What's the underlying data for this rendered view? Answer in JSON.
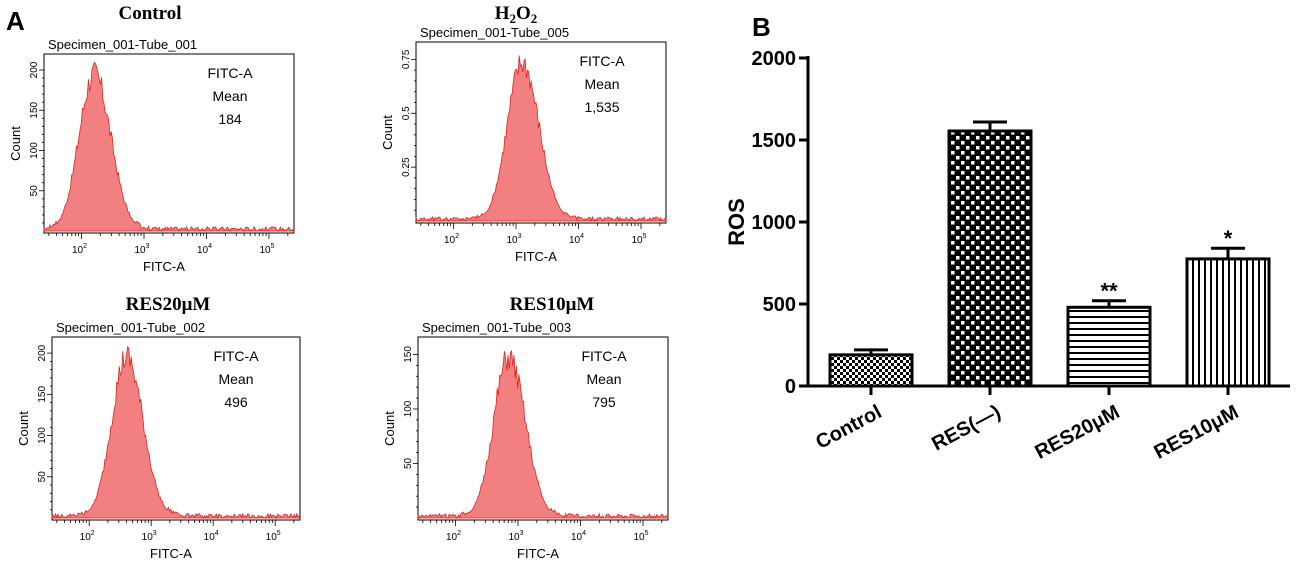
{
  "panels": {
    "a": "A",
    "b": "B"
  },
  "chart_data": [
    {
      "type": "histogram-grid",
      "panel": "A",
      "histograms": [
        {
          "title": "Control",
          "title_sub": "",
          "subtitle": "Specimen_001-Tube_001",
          "info": [
            "FITC-A",
            "Mean",
            "184"
          ],
          "xlabel": "FITC-A",
          "ylabel": "Count",
          "peak_log": 2.2,
          "yticks": [
            "50",
            "100",
            "150",
            "200"
          ]
        },
        {
          "title": "H",
          "title_sub": "2",
          "title_2": "O",
          "title_sub_2": "2",
          "subtitle": "Specimen_001-Tube_005",
          "info": [
            "FITC-A",
            "Mean",
            "1,535"
          ],
          "xlabel": "FITC-A",
          "ylabel": "Count",
          "peak_log": 3.1,
          "yticks": [
            "0.25",
            "0.5",
            "0.75"
          ]
        },
        {
          "title": "RES20μM",
          "title_sub": "",
          "subtitle": "Specimen_001-Tube_002",
          "info": [
            "FITC-A",
            "Mean",
            "496"
          ],
          "xlabel": "FITC-A",
          "ylabel": "Count",
          "peak_log": 2.6,
          "yticks": [
            "50",
            "100",
            "150",
            "200"
          ]
        },
        {
          "title": "RES10μM",
          "title_sub": "",
          "subtitle": "Specimen_001-Tube_003",
          "info": [
            "FITC-A",
            "Mean",
            "795"
          ],
          "xlabel": "FITC-A",
          "ylabel": "Count",
          "peak_log": 2.85,
          "yticks": [
            "50",
            "100",
            "150"
          ]
        }
      ],
      "x_ticks": [
        {
          "base": "10",
          "exp": "2"
        },
        {
          "base": "10",
          "exp": "3"
        },
        {
          "base": "10",
          "exp": "4"
        },
        {
          "base": "10",
          "exp": "5"
        }
      ]
    },
    {
      "type": "bar",
      "panel": "B",
      "categories": [
        "Control",
        "RES(—)",
        "RES20μM",
        "RES10μM"
      ],
      "values": [
        190,
        1555,
        480,
        775
      ],
      "errors": [
        30,
        55,
        40,
        65
      ],
      "annotations": [
        "",
        "",
        "**",
        "*"
      ],
      "patterns": [
        "dense-check",
        "check",
        "hlines",
        "vlines"
      ],
      "ylabel": "ROS",
      "ylim": [
        0,
        2000
      ],
      "yticks": [
        "0",
        "500",
        "1000",
        "1500",
        "2000"
      ]
    }
  ],
  "colors": {
    "hist_fill": "#f28080",
    "hist_stroke": "#e8201a",
    "axis": "#000000"
  }
}
